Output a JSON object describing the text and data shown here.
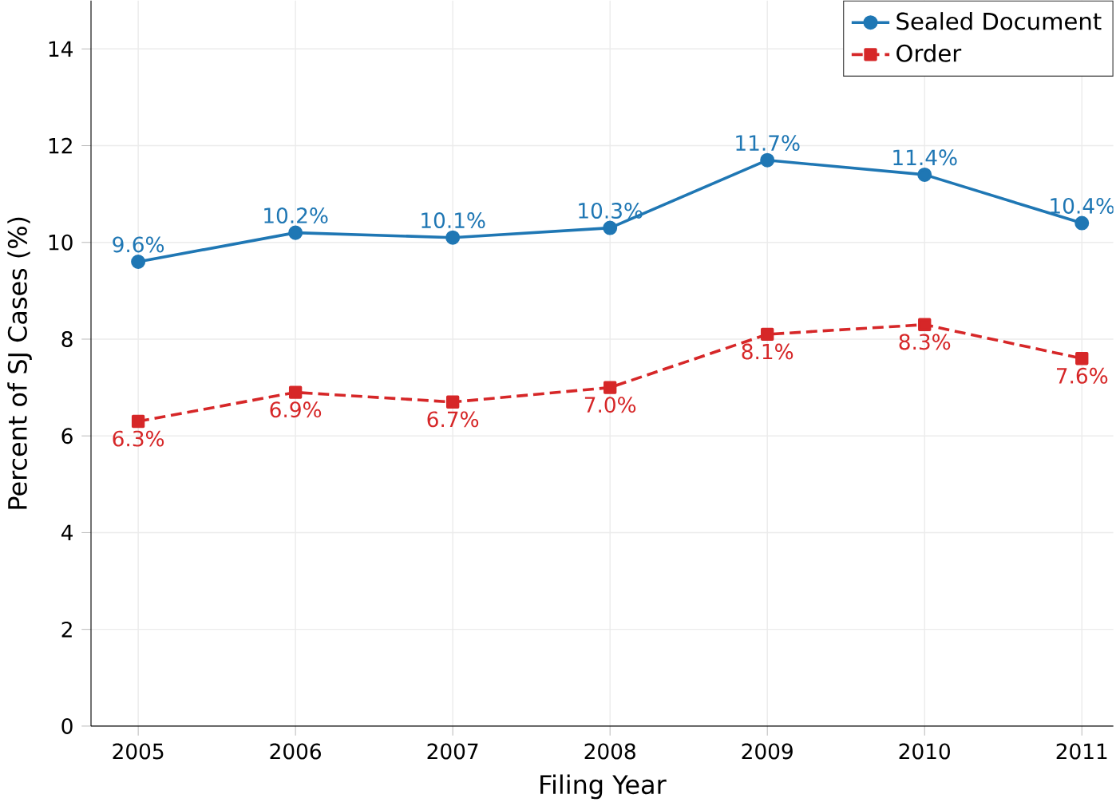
{
  "chart_data": {
    "type": "line",
    "xlabel": "Filing Year",
    "ylabel": "Percent of SJ Cases (%)",
    "x": [
      2005,
      2006,
      2007,
      2008,
      2009,
      2010,
      2011
    ],
    "series": [
      {
        "name": "Sealed Document",
        "color": "#1f77b4",
        "marker": "circle",
        "line_style": "solid",
        "values": [
          9.6,
          10.2,
          10.1,
          10.3,
          11.7,
          11.4,
          10.4
        ],
        "value_labels": [
          "9.6%",
          "10.2%",
          "10.1%",
          "10.3%",
          "11.7%",
          "11.4%",
          "10.4%"
        ]
      },
      {
        "name": "Order",
        "color": "#d62728",
        "marker": "square",
        "line_style": "dashed",
        "values": [
          6.3,
          6.9,
          6.7,
          7.0,
          8.1,
          8.3,
          7.6
        ],
        "value_labels": [
          "6.3%",
          "6.9%",
          "6.7%",
          "7.0%",
          "8.1%",
          "8.3%",
          "7.6%"
        ]
      }
    ],
    "xlim": [
      2004.7,
      2011.2
    ],
    "ylim": [
      0,
      15
    ],
    "xticks": [
      2005,
      2006,
      2007,
      2008,
      2009,
      2010,
      2011
    ],
    "yticks": [
      0,
      2,
      4,
      6,
      8,
      10,
      12,
      14
    ],
    "grid": true,
    "legend": "top right"
  }
}
